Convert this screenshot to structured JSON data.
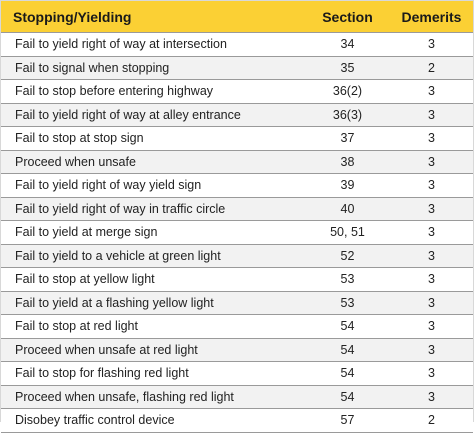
{
  "header": {
    "title": "Stopping/Yielding",
    "section_label": "Section",
    "demerits_label": "Demerits"
  },
  "rows": [
    {
      "violation": "Fail to yield right of way at intersection",
      "section": "34",
      "demerits": "3"
    },
    {
      "violation": "Fail to signal when stopping",
      "section": "35",
      "demerits": "2"
    },
    {
      "violation": "Fail to stop before entering highway",
      "section": "36(2)",
      "demerits": "3"
    },
    {
      "violation": "Fail to yield right of way at alley entrance",
      "section": "36(3)",
      "demerits": "3"
    },
    {
      "violation": "Fail to stop at stop sign",
      "section": "37",
      "demerits": "3"
    },
    {
      "violation": "Proceed when unsafe",
      "section": "38",
      "demerits": "3"
    },
    {
      "violation": "Fail to yield right of way yield sign",
      "section": "39",
      "demerits": "3"
    },
    {
      "violation": "Fail to yield right of way in traffic circle",
      "section": "40",
      "demerits": "3"
    },
    {
      "violation": "Fail to yield at merge sign",
      "section": "50, 51",
      "demerits": "3"
    },
    {
      "violation": "Fail to yield to a vehicle at green light",
      "section": "52",
      "demerits": "3"
    },
    {
      "violation": "Fail to stop at yellow light",
      "section": "53",
      "demerits": "3"
    },
    {
      "violation": "Fail to yield at a flashing yellow light",
      "section": "53",
      "demerits": "3"
    },
    {
      "violation": "Fail to stop at red light",
      "section": "54",
      "demerits": "3"
    },
    {
      "violation": "Proceed when unsafe at red light",
      "section": "54",
      "demerits": "3"
    },
    {
      "violation": "Fail to stop for flashing red light",
      "section": "54",
      "demerits": "3"
    },
    {
      "violation": "Proceed when unsafe, flashing red light",
      "section": "54",
      "demerits": "3"
    },
    {
      "violation": "Disobey traffic control device",
      "section": "57",
      "demerits": "2"
    }
  ],
  "colors": {
    "header_background": "#fbd034",
    "row_alt_background": "#f2f2f2",
    "divider": "#9a9a9a"
  }
}
